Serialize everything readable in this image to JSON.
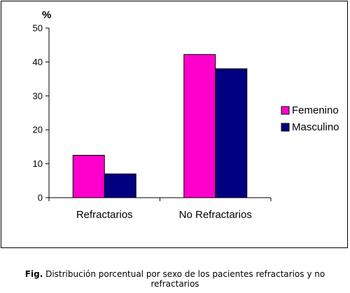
{
  "chart_data": {
    "type": "bar",
    "unit_label": "%",
    "categories": [
      "Refractarios",
      "No Refractarios"
    ],
    "series": [
      {
        "name": "Femenino",
        "color": "#ff00cc",
        "values": [
          12.5,
          42.2
        ]
      },
      {
        "name": "Masculino",
        "color": "#000080",
        "values": [
          7.0,
          38.0
        ]
      }
    ],
    "ylim": [
      0,
      50
    ],
    "yticks": [
      "0",
      "10",
      "20",
      "30",
      "40",
      "50"
    ],
    "legend_placement": "right",
    "grid": false
  },
  "caption": {
    "prefix": "Fig.",
    "text": " Distribución porcentual por sexo de los pacientes refractarios y no refractarios"
  }
}
